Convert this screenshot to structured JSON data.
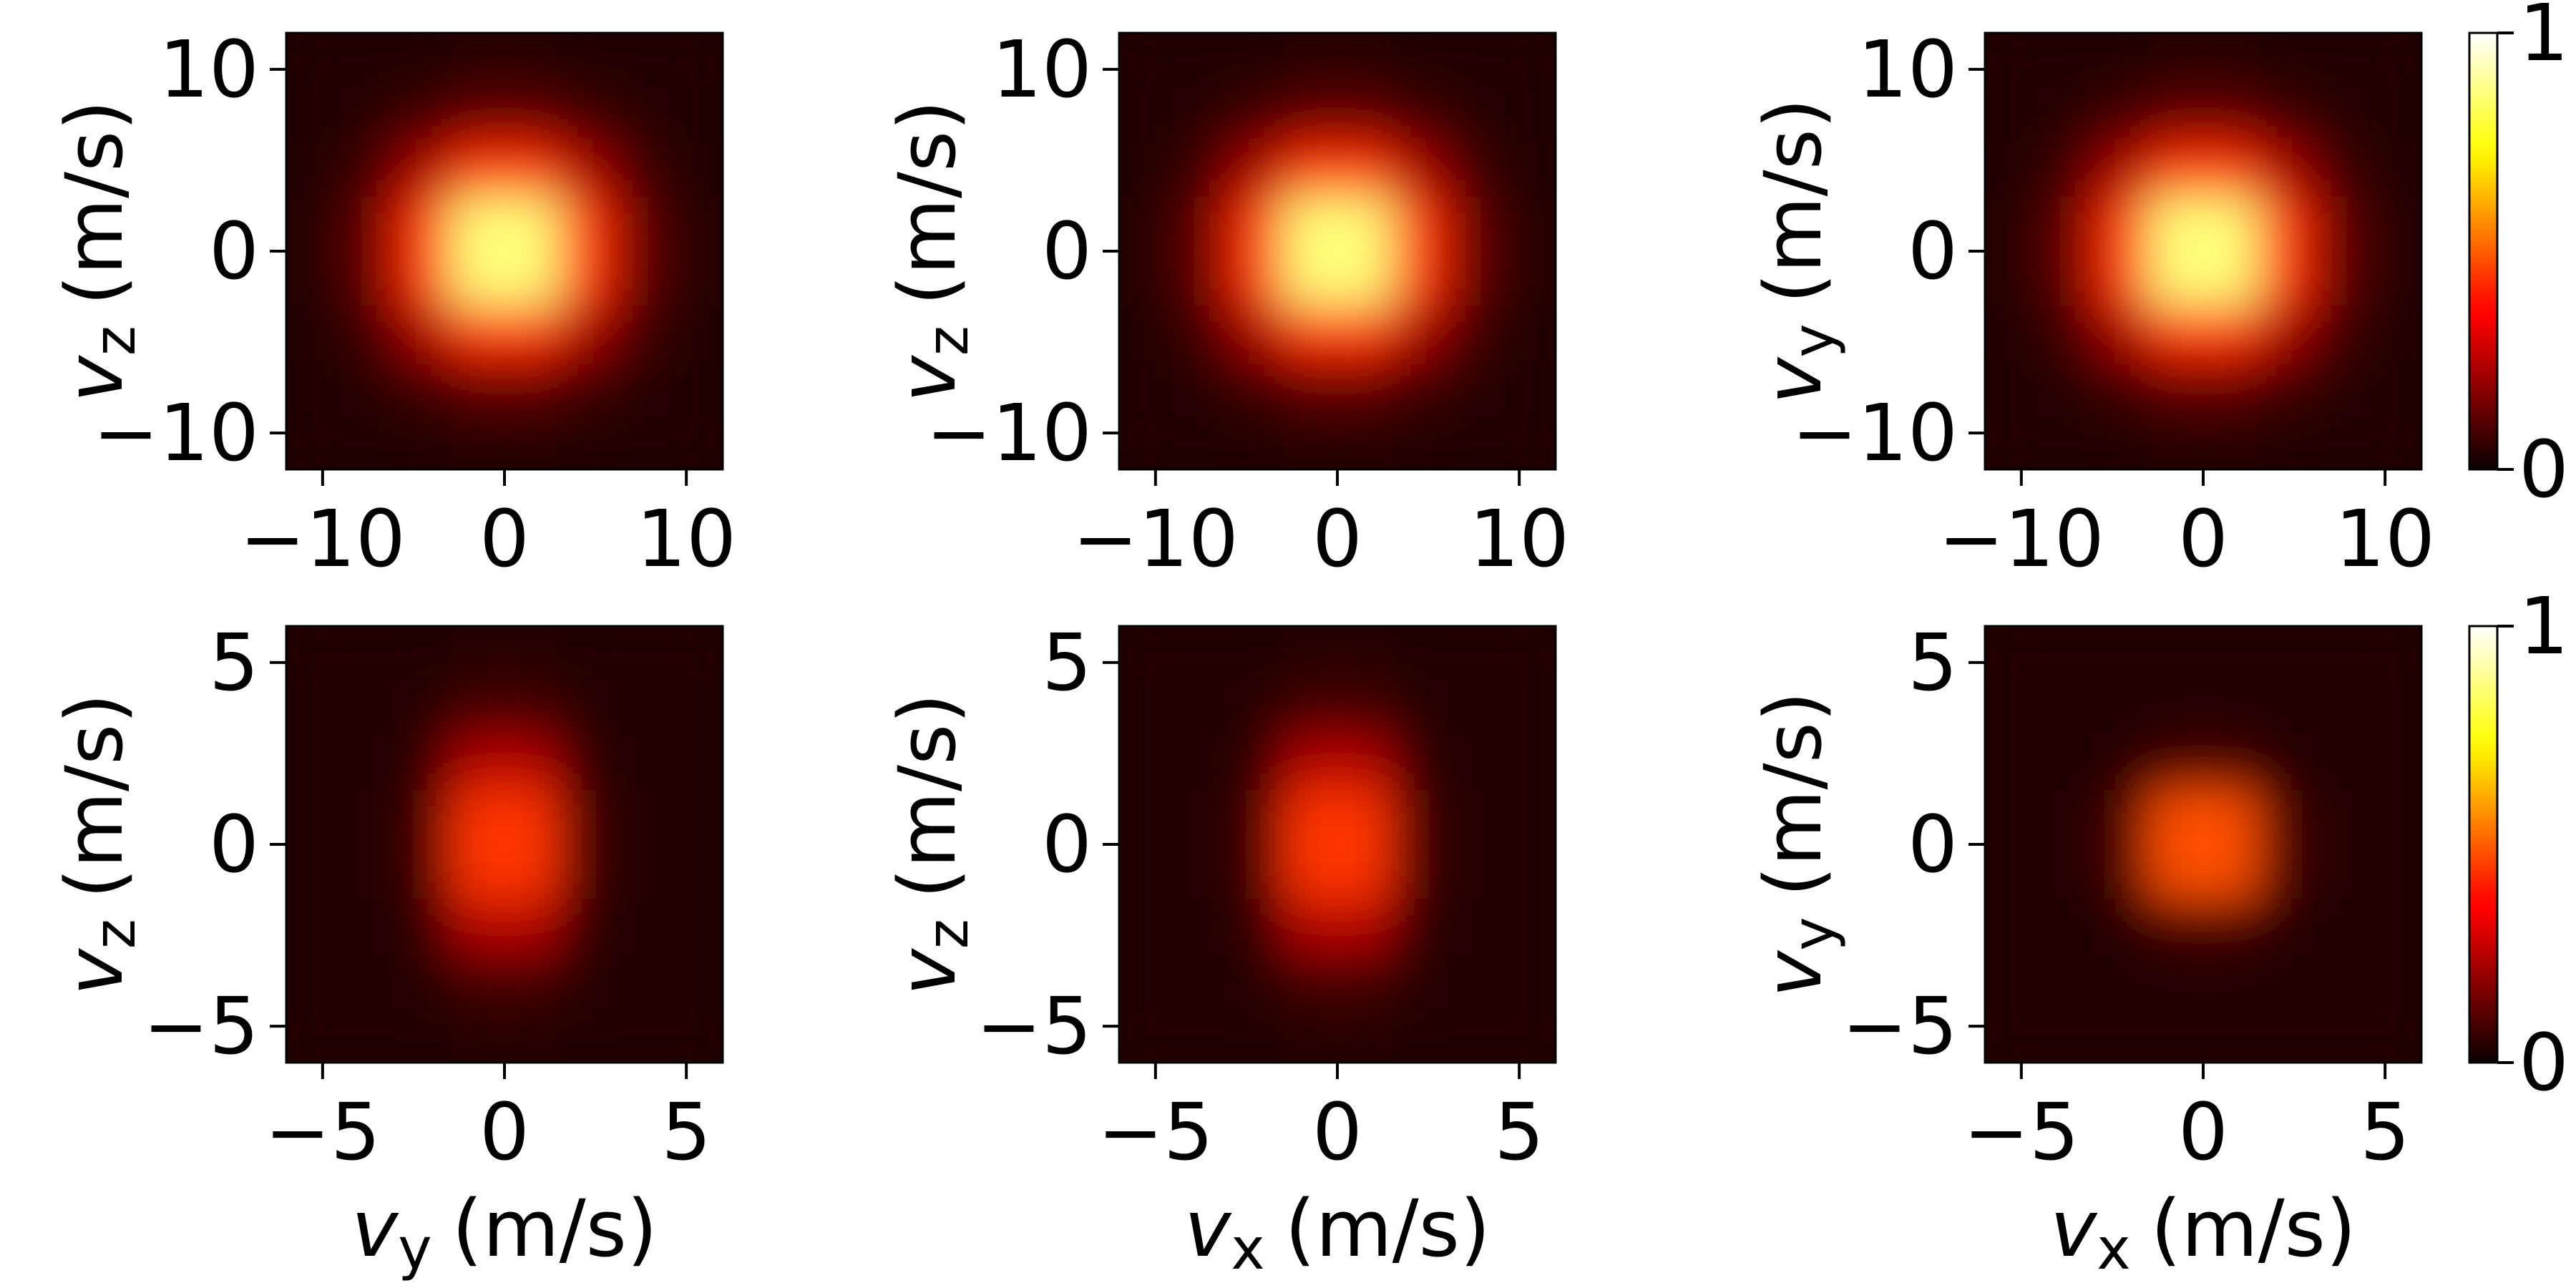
{
  "chart_data": [
    {
      "type": "heatmap",
      "cmap": "hot",
      "clim": [
        0,
        1
      ],
      "xlim": [
        -12,
        12
      ],
      "ylim": [
        -12,
        12
      ],
      "xticks": [
        {
          "value": -10,
          "label": "−10"
        },
        0,
        10
      ],
      "yticks": [
        {
          "value": -10,
          "label": "−10"
        },
        0,
        10
      ],
      "ylabel": {
        "var": "v",
        "sub": "z",
        "unit": "(m/s)"
      },
      "values": [
        [
          0.03,
          0.03,
          0.03,
          0.04,
          0.04,
          0.03,
          0.03,
          0.03
        ],
        [
          0.03,
          0.04,
          0.07,
          0.12,
          0.12,
          0.07,
          0.04,
          0.03
        ],
        [
          0.03,
          0.07,
          0.22,
          0.43,
          0.43,
          0.22,
          0.07,
          0.03
        ],
        [
          0.04,
          0.12,
          0.43,
          0.86,
          0.86,
          0.43,
          0.12,
          0.04
        ],
        [
          0.04,
          0.12,
          0.43,
          0.86,
          0.86,
          0.43,
          0.12,
          0.04
        ],
        [
          0.03,
          0.07,
          0.22,
          0.43,
          0.43,
          0.22,
          0.07,
          0.03
        ],
        [
          0.03,
          0.04,
          0.07,
          0.12,
          0.12,
          0.07,
          0.04,
          0.03
        ],
        [
          0.03,
          0.03,
          0.03,
          0.04,
          0.04,
          0.03,
          0.03,
          0.03
        ]
      ]
    },
    {
      "type": "heatmap",
      "cmap": "hot",
      "clim": [
        0,
        1
      ],
      "xlim": [
        -12,
        12
      ],
      "ylim": [
        -12,
        12
      ],
      "xticks": [
        {
          "value": -10,
          "label": "−10"
        },
        0,
        10
      ],
      "yticks": [
        {
          "value": -10,
          "label": "−10"
        },
        0,
        10
      ],
      "ylabel": {
        "var": "v",
        "sub": "z",
        "unit": "(m/s)"
      },
      "values": [
        [
          0.03,
          0.03,
          0.03,
          0.04,
          0.04,
          0.03,
          0.03,
          0.03
        ],
        [
          0.03,
          0.04,
          0.07,
          0.12,
          0.12,
          0.07,
          0.04,
          0.03
        ],
        [
          0.03,
          0.07,
          0.22,
          0.43,
          0.43,
          0.22,
          0.07,
          0.03
        ],
        [
          0.04,
          0.12,
          0.43,
          0.86,
          0.86,
          0.43,
          0.12,
          0.04
        ],
        [
          0.04,
          0.12,
          0.43,
          0.86,
          0.86,
          0.43,
          0.12,
          0.04
        ],
        [
          0.03,
          0.07,
          0.22,
          0.43,
          0.43,
          0.22,
          0.07,
          0.03
        ],
        [
          0.03,
          0.04,
          0.07,
          0.12,
          0.12,
          0.07,
          0.04,
          0.03
        ],
        [
          0.03,
          0.03,
          0.03,
          0.04,
          0.04,
          0.03,
          0.03,
          0.03
        ]
      ]
    },
    {
      "type": "heatmap",
      "cmap": "hot",
      "clim": [
        0,
        1
      ],
      "xlim": [
        -12,
        12
      ],
      "ylim": [
        -12,
        12
      ],
      "xticks": [
        {
          "value": -10,
          "label": "−10"
        },
        0,
        10
      ],
      "yticks": [
        {
          "value": -10,
          "label": "−10"
        },
        0,
        10
      ],
      "ylabel": {
        "var": "v",
        "sub": "y",
        "unit": "(m/s)"
      },
      "colorbar": {
        "ticks": [
          0,
          1
        ]
      },
      "values": [
        [
          0.03,
          0.03,
          0.03,
          0.04,
          0.04,
          0.03,
          0.03,
          0.03
        ],
        [
          0.03,
          0.04,
          0.07,
          0.12,
          0.12,
          0.07,
          0.04,
          0.03
        ],
        [
          0.03,
          0.07,
          0.22,
          0.43,
          0.43,
          0.22,
          0.07,
          0.03
        ],
        [
          0.04,
          0.12,
          0.43,
          0.86,
          0.86,
          0.43,
          0.12,
          0.04
        ],
        [
          0.04,
          0.12,
          0.43,
          0.86,
          0.86,
          0.43,
          0.12,
          0.04
        ],
        [
          0.03,
          0.07,
          0.22,
          0.43,
          0.43,
          0.22,
          0.07,
          0.03
        ],
        [
          0.03,
          0.04,
          0.07,
          0.12,
          0.12,
          0.07,
          0.04,
          0.03
        ],
        [
          0.03,
          0.03,
          0.03,
          0.04,
          0.04,
          0.03,
          0.03,
          0.03
        ]
      ]
    },
    {
      "type": "heatmap",
      "cmap": "hot",
      "clim": [
        0,
        1
      ],
      "xlim": [
        -6,
        6
      ],
      "ylim": [
        -6,
        6
      ],
      "xticks": [
        {
          "value": -5,
          "label": "−5"
        },
        0,
        5
      ],
      "yticks": [
        {
          "value": -5,
          "label": "−5"
        },
        0,
        5
      ],
      "xlabel": {
        "var": "v",
        "sub": "y",
        "unit": "(m/s)"
      },
      "ylabel": {
        "var": "v",
        "sub": "z",
        "unit": "(m/s)"
      },
      "values": [
        [
          0.03,
          0.03,
          0.03,
          0.04,
          0.04,
          0.03,
          0.03,
          0.03
        ],
        [
          0.03,
          0.03,
          0.04,
          0.08,
          0.08,
          0.04,
          0.03,
          0.03
        ],
        [
          0.03,
          0.03,
          0.05,
          0.24,
          0.24,
          0.05,
          0.03,
          0.03
        ],
        [
          0.03,
          0.03,
          0.07,
          0.44,
          0.44,
          0.07,
          0.03,
          0.03
        ],
        [
          0.03,
          0.03,
          0.07,
          0.44,
          0.44,
          0.07,
          0.03,
          0.03
        ],
        [
          0.03,
          0.03,
          0.05,
          0.24,
          0.24,
          0.05,
          0.03,
          0.03
        ],
        [
          0.03,
          0.03,
          0.04,
          0.08,
          0.08,
          0.04,
          0.03,
          0.03
        ],
        [
          0.03,
          0.03,
          0.03,
          0.04,
          0.04,
          0.03,
          0.03,
          0.03
        ]
      ]
    },
    {
      "type": "heatmap",
      "cmap": "hot",
      "clim": [
        0,
        1
      ],
      "xlim": [
        -6,
        6
      ],
      "ylim": [
        -6,
        6
      ],
      "xticks": [
        {
          "value": -5,
          "label": "−5"
        },
        0,
        5
      ],
      "yticks": [
        {
          "value": -5,
          "label": "−5"
        },
        0,
        5
      ],
      "xlabel": {
        "var": "v",
        "sub": "x",
        "unit": "(m/s)"
      },
      "ylabel": {
        "var": "v",
        "sub": "z",
        "unit": "(m/s)"
      },
      "values": [
        [
          0.03,
          0.03,
          0.03,
          0.04,
          0.04,
          0.03,
          0.03,
          0.03
        ],
        [
          0.03,
          0.03,
          0.04,
          0.08,
          0.08,
          0.04,
          0.03,
          0.03
        ],
        [
          0.03,
          0.03,
          0.05,
          0.24,
          0.24,
          0.05,
          0.03,
          0.03
        ],
        [
          0.03,
          0.03,
          0.07,
          0.44,
          0.44,
          0.07,
          0.03,
          0.03
        ],
        [
          0.03,
          0.03,
          0.07,
          0.44,
          0.44,
          0.07,
          0.03,
          0.03
        ],
        [
          0.03,
          0.03,
          0.05,
          0.24,
          0.24,
          0.05,
          0.03,
          0.03
        ],
        [
          0.03,
          0.03,
          0.04,
          0.08,
          0.08,
          0.04,
          0.03,
          0.03
        ],
        [
          0.03,
          0.03,
          0.03,
          0.04,
          0.04,
          0.03,
          0.03,
          0.03
        ]
      ]
    },
    {
      "type": "heatmap",
      "cmap": "hot",
      "clim": [
        0,
        1
      ],
      "xlim": [
        -6,
        6
      ],
      "ylim": [
        -6,
        6
      ],
      "xticks": [
        {
          "value": -5,
          "label": "−5"
        },
        0,
        5
      ],
      "yticks": [
        {
          "value": -5,
          "label": "−5"
        },
        0,
        5
      ],
      "xlabel": {
        "var": "v",
        "sub": "x",
        "unit": "(m/s)"
      },
      "ylabel": {
        "var": "v",
        "sub": "y",
        "unit": "(m/s)"
      },
      "colorbar": {
        "ticks": [
          0,
          1
        ]
      },
      "values": [
        [
          0.03,
          0.03,
          0.03,
          0.03,
          0.03,
          0.03,
          0.03,
          0.03
        ],
        [
          0.03,
          0.03,
          0.03,
          0.03,
          0.03,
          0.03,
          0.03,
          0.03
        ],
        [
          0.03,
          0.03,
          0.04,
          0.08,
          0.08,
          0.04,
          0.03,
          0.03
        ],
        [
          0.03,
          0.03,
          0.08,
          0.48,
          0.48,
          0.08,
          0.03,
          0.03
        ],
        [
          0.03,
          0.03,
          0.08,
          0.48,
          0.48,
          0.08,
          0.03,
          0.03
        ],
        [
          0.03,
          0.03,
          0.04,
          0.08,
          0.08,
          0.04,
          0.03,
          0.03
        ],
        [
          0.03,
          0.03,
          0.03,
          0.03,
          0.03,
          0.03,
          0.03,
          0.03
        ],
        [
          0.03,
          0.03,
          0.03,
          0.03,
          0.03,
          0.03,
          0.03,
          0.03
        ]
      ]
    }
  ]
}
